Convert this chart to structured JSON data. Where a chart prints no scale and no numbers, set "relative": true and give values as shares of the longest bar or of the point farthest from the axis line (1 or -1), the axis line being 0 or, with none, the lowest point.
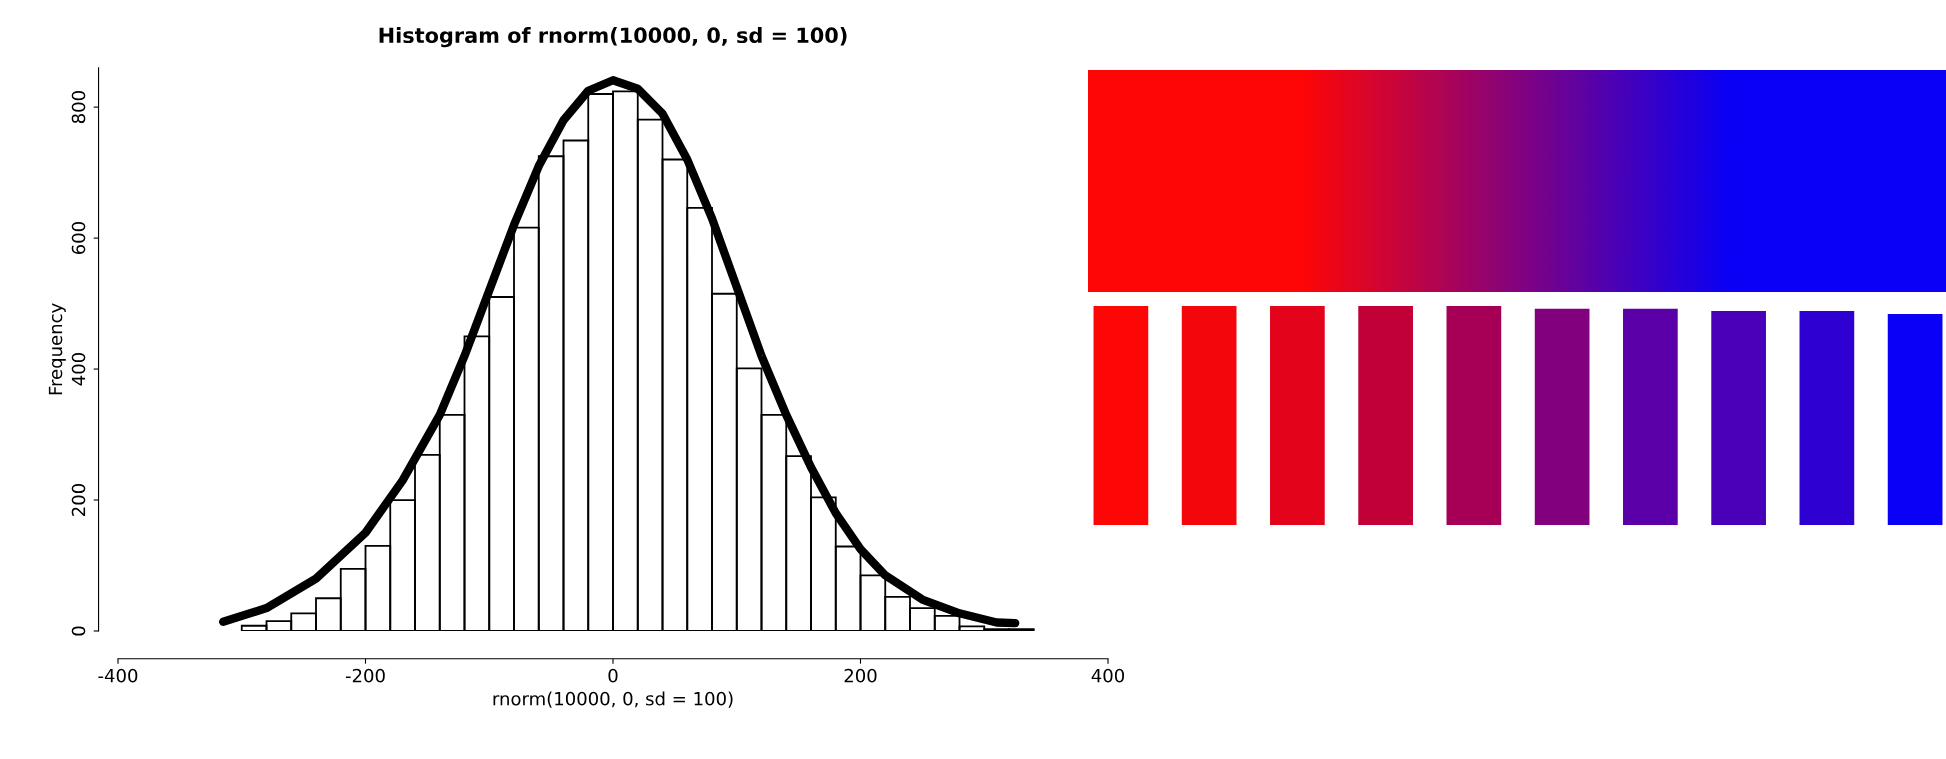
{
  "chart_data": [
    {
      "type": "histogram",
      "title": "Histogram of rnorm(10000, 0, sd = 100)",
      "xlabel": "rnorm(10000, 0, sd = 100)",
      "ylabel": "Frequency",
      "bins": [
        -300,
        -280,
        -260,
        -240,
        -220,
        -200,
        -180,
        -160,
        -140,
        -120,
        -100,
        -80,
        -60,
        -40,
        -20,
        0,
        20,
        40,
        60,
        80,
        100,
        120,
        140,
        160,
        180,
        200,
        220,
        240,
        260,
        280,
        300,
        320,
        340
      ],
      "values": [
        8,
        15,
        27,
        50,
        95,
        130,
        200,
        269,
        330,
        450,
        510,
        616,
        725,
        749,
        820,
        824,
        781,
        720,
        646,
        515,
        401,
        330,
        267,
        204,
        129,
        85,
        52,
        35,
        23,
        7,
        3,
        3
      ],
      "color": "#000000",
      "series": [
        {
          "type": "line",
          "color": "#000000",
          "x": [
            -315,
            -280,
            -240,
            -200,
            -170,
            -140,
            -120,
            -100,
            -80,
            -60,
            -40,
            -20,
            0,
            20,
            40,
            60,
            80,
            100,
            120,
            140,
            160,
            180,
            200,
            220,
            250,
            280,
            310,
            325
          ],
          "values": [
            14,
            35,
            80,
            150,
            230,
            330,
            420,
            520,
            620,
            710,
            780,
            825,
            841,
            828,
            790,
            720,
            630,
            525,
            420,
            330,
            250,
            180,
            125,
            85,
            48,
            27,
            13,
            12
          ]
        }
      ],
      "xlim": [
        -400,
        400
      ],
      "xticks": [
        -400,
        -200,
        0,
        200,
        400
      ],
      "ylim": [
        0,
        860
      ],
      "yticks": [
        0,
        200,
        400,
        600,
        800
      ],
      "grid": false
    },
    {
      "type": "bar",
      "relative": true,
      "categories": [
        null,
        null,
        null,
        null,
        null,
        null,
        null,
        null,
        null,
        null
      ],
      "values": [
        1,
        1,
        1,
        1,
        1,
        0.987,
        0.987,
        0.977,
        0.977,
        0.964
      ],
      "colors": [
        "#ff0606",
        "#f3060c",
        "#e3041c",
        "#c20038",
        "#a50055",
        "#82007e",
        "#5b00a8",
        "#4a00b9",
        "#2e00d2",
        "#0a00f5"
      ]
    }
  ]
}
